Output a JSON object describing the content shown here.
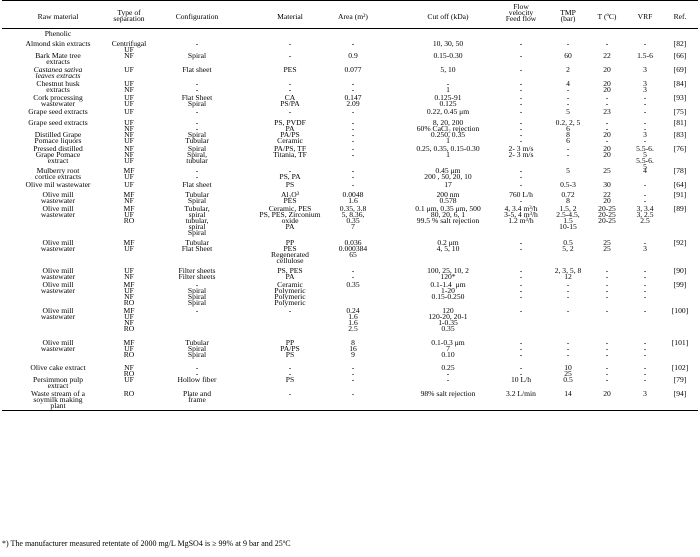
{
  "header": {
    "raw_material": "Raw material",
    "type": "Type of\nseparation",
    "configuration": "Configuration",
    "material": "Material",
    "area": "Area (m²)",
    "cutoff": "Cut off (kDa)",
    "flow": "Flow\nvelocity\nFeed flow",
    "tmp": "TMP\n(bar)",
    "temp": "T (ºC)",
    "vrf": "VRF",
    "ref": "Ref."
  },
  "section_label": "Phenolic",
  "rows": [
    {
      "raw": "Almond skin extracts",
      "type": "Centrifugal\nUF",
      "config": "-",
      "material": "-",
      "area": "-",
      "cutoff": "10, 30, 50",
      "flow": "-",
      "tmp": "-",
      "temp": "-",
      "vrf": "-",
      "ref": "[82]"
    },
    {
      "raw": "Bark Mate tree\nextracts",
      "type": "NF",
      "config": "Spiral",
      "material": "-",
      "area": "0.9",
      "cutoff": "0.15-0.30",
      "flow": "-",
      "tmp": "60",
      "temp": "22",
      "vrf": "1.5-6",
      "ref": "[66]"
    },
    {
      "raw": "Castanea sativa\nleaves extracts",
      "type": "UF",
      "config": "Flat sheet",
      "material": "PES",
      "area": "0.077",
      "cutoff": "5, 10",
      "flow": "-",
      "tmp": "2",
      "temp": "20",
      "vrf": "3",
      "ref": "[69]"
    },
    {
      "raw": "Chestnut husk\nextracts",
      "type": "UF\nNF",
      "config": "-\n-",
      "material": "-\n-",
      "area": "-\n-",
      "cutoff": "-\n1",
      "flow": "-\n-",
      "tmp": "4\n-",
      "temp": "20\n20",
      "vrf": "3\n3",
      "ref": "[84]"
    },
    {
      "raw": "Cork processing\nwastewater",
      "type": "UF\nUF",
      "config": "Flat Sheet\nSpiral",
      "material": "CA\nPS/PA",
      "area": "0.147\n2.09",
      "cutoff": "0.125-91\n0.125",
      "flow": "-\n-",
      "tmp": "-\n-",
      "temp": "-\n-",
      "vrf": "-\n-",
      "ref": "[93]"
    },
    {
      "raw": "Grape seed extracts",
      "type": "UF",
      "config": "-",
      "material": "-",
      "area": "-",
      "cutoff": "0.22, 0.45 μm",
      "flow": "-",
      "tmp": "5",
      "temp": "23",
      "vrf": "-",
      "ref": "[75]"
    },
    {
      "raw": "Grape seed extracts",
      "type": "UF\nNF",
      "config": "-\n-",
      "material": "PS, PVDF\nPA",
      "area": "-\n-",
      "cutoff": "8, 20, 200\n60% CaCl₂ rejection",
      "flow": "-\n-",
      "tmp": "0.2, 2, 5\n6",
      "temp": "-\n-",
      "vrf": "-\n-",
      "ref": "[81]"
    },
    {
      "raw": "Distilled Grape\nPomace liquors",
      "type": "NF\nUF",
      "config": "Spiral\nTubular",
      "material": "PA/PS\nCeramic",
      "area": "-\n-",
      "cutoff": "0.250, 0.35\n1",
      "flow": "-\n-",
      "tmp": "8\n6",
      "temp": "20\n-",
      "vrf": "3\n-",
      "ref": "[83]"
    },
    {
      "raw": "Pressed distilled\nGrape Pomace\nextract",
      "type": "NF\nNF\nUF",
      "config": "Spiral\nSpiral,\ntubular",
      "material": "PA/PS, TF\nTitania, TF",
      "area": "-\n-",
      "cutoff": "0.25, 0.35, 0.15-0.30\n1",
      "flow": "2- 3 m/s\n2- 3 m/s",
      "tmp": "-\n-",
      "temp": "20\n20",
      "vrf": "5.5-6.\n5\n5.5-6.\n5",
      "ref": "[76]"
    },
    {
      "raw": "Mulberry root\ncortice extracts",
      "type": "MF\nUF",
      "config": "-\n-",
      "material": "-\nPS, PA",
      "area": "-\n-",
      "cutoff": "0.45 μm\n200 , 50, 20, 10",
      "flow": "-\n-",
      "tmp": "5",
      "temp": "25",
      "vrf": "4",
      "ref": "[78]"
    },
    {
      "raw": "Olive mil wastewater",
      "type": "UF",
      "config": "Flat sheet",
      "material": "PS",
      "area": "-",
      "cutoff": "17",
      "flow": "-",
      "tmp": "0.5-3",
      "temp": "30",
      "vrf": "-",
      "ref": "[64]"
    },
    {
      "raw": "Olive mill\nwastewater",
      "type": "MF\nNF",
      "config": "Tubular\nSpiral",
      "material": "Al₂O³\nPES",
      "area": "0.0048\n1.6",
      "cutoff": "200 nm\n0.578",
      "flow": "760 L/h\n-",
      "tmp": "0.72\n8",
      "temp": "22\n20",
      "vrf": "-\n-",
      "ref": "[91]"
    },
    {
      "raw": "Olive mill\nwastewater",
      "type": "MF\nUF\nRO",
      "config": "Tubular,\nspiral\ntubular,\nspiral\nSpiral",
      "material": "Ceramic, PES\nPS, PES, Zirconium\noxide\nPA",
      "area": "0.35, 3.8\n5, 8.36,\n0.35\n7",
      "cutoff": "0.1 μm, 0.35 μm, 500\n80, 20, 6, 1\n99.5 % salt rejection",
      "flow": "4, 3.4 m³/h\n3-5, 4 m³/h\n1.2 m³/h",
      "tmp": "1.5, 2\n2.5-4.5,\n1.5\n10-15",
      "temp": "20-25\n20-25\n20-25",
      "vrf": "3, 3.4\n3, 2.5\n2.5",
      "ref": "[89]"
    },
    {
      "raw": "Olive mill\nwastewater",
      "type": "MF\nUF",
      "config": "Tubular\nFlat Sheet",
      "material": "PP\nPES\nRegenerated\ncellulose",
      "area": "0.036\n0.000384\n65",
      "cutoff": "0.2 μm\n4, 5, 10",
      "flow": "-\n-",
      "tmp": "0.5\n5, 2",
      "temp": "25\n25",
      "vrf": "-\n3",
      "ref": "[92]"
    },
    {
      "raw": "Olive mill\nwastewater",
      "type": "UF\nNF",
      "config": "Filter sheets\nFilter sheets",
      "material": "PS, PES\nPA",
      "area": "-\n-",
      "cutoff": "100, 25, 10, 2\n120*",
      "flow": "-\n-",
      "tmp": "2, 3, 5, 8\n12",
      "temp": "-\n-",
      "vrf": "-\n-",
      "ref": "[90]"
    },
    {
      "raw": "Olive mill\nwastewater",
      "type": "MF\nUF\nNF\nRO",
      "config": "-\nSpiral\nSpiral\nSpiral",
      "material": "Ceramic\nPolymeric\nPolymeric\nPolymeric",
      "area": "0.35",
      "cutoff": "0.1-1.4  μm\n1-20\n0.15-0.250",
      "flow": "-\n-\n-",
      "tmp": "-\n-\n-",
      "temp": "-\n-\n-",
      "vrf": "-\n-\n-",
      "ref": "[99]"
    },
    {
      "raw": "Olive mill\nwastewater",
      "type": "MF\nUF\nNF\nRO",
      "config": "-",
      "material": "-",
      "area": "0.24\n1.6\n1.6\n2.5",
      "cutoff": "120\n120-20, 20-1\n1-0.35\n0.35",
      "flow": "-",
      "tmp": "-",
      "temp": "-",
      "vrf": "-",
      "ref": "[100]"
    },
    {
      "raw": "Olive mill\nwastewater",
      "type": "MF\nUF\nRO",
      "config": "Tubular\nSpiral\nSpiral",
      "material": "PP\nPA/PS\nPS",
      "area": "8\n16\n9",
      "cutoff": "0.1-0.3 μm\n7\n0.10",
      "flow": "-\n-\n-",
      "tmp": "-\n-\n-",
      "temp": "-\n-\n-",
      "vrf": "-\n-\n-",
      "ref": "[101]"
    },
    {
      "raw": "Olive cake extract",
      "type": "NF\nRO",
      "config": "-\n-",
      "material": "-\n-",
      "area": "-\n-",
      "cutoff": "0.25\n-",
      "flow": "-\n-",
      "tmp": "10\n25",
      "temp": "-\n-",
      "vrf": "-\n-",
      "ref": "[102]"
    },
    {
      "raw": "Persimmon pulp\nextract",
      "type": "UF",
      "config": "Hollow fiber",
      "material": "PS",
      "area": "-",
      "cutoff": "-",
      "flow": "10 L/h",
      "tmp": "0.5",
      "temp": "-",
      "vrf": "-",
      "ref": "[79]"
    },
    {
      "raw": "Waste stream of a\nsoymilk making\nplant",
      "type": "RO",
      "config": "Plate and\nframe",
      "material": "-",
      "area": "-",
      "cutoff": "98% salt rejection",
      "flow": "3.2 L/min",
      "tmp": "14",
      "temp": "20",
      "vrf": "3",
      "ref": "[94]"
    }
  ],
  "footnote": "*) The manufacturer measured retentate of 2000 mg/L MgSO4 is ≥ 99% at 9 bar and 25ºC"
}
